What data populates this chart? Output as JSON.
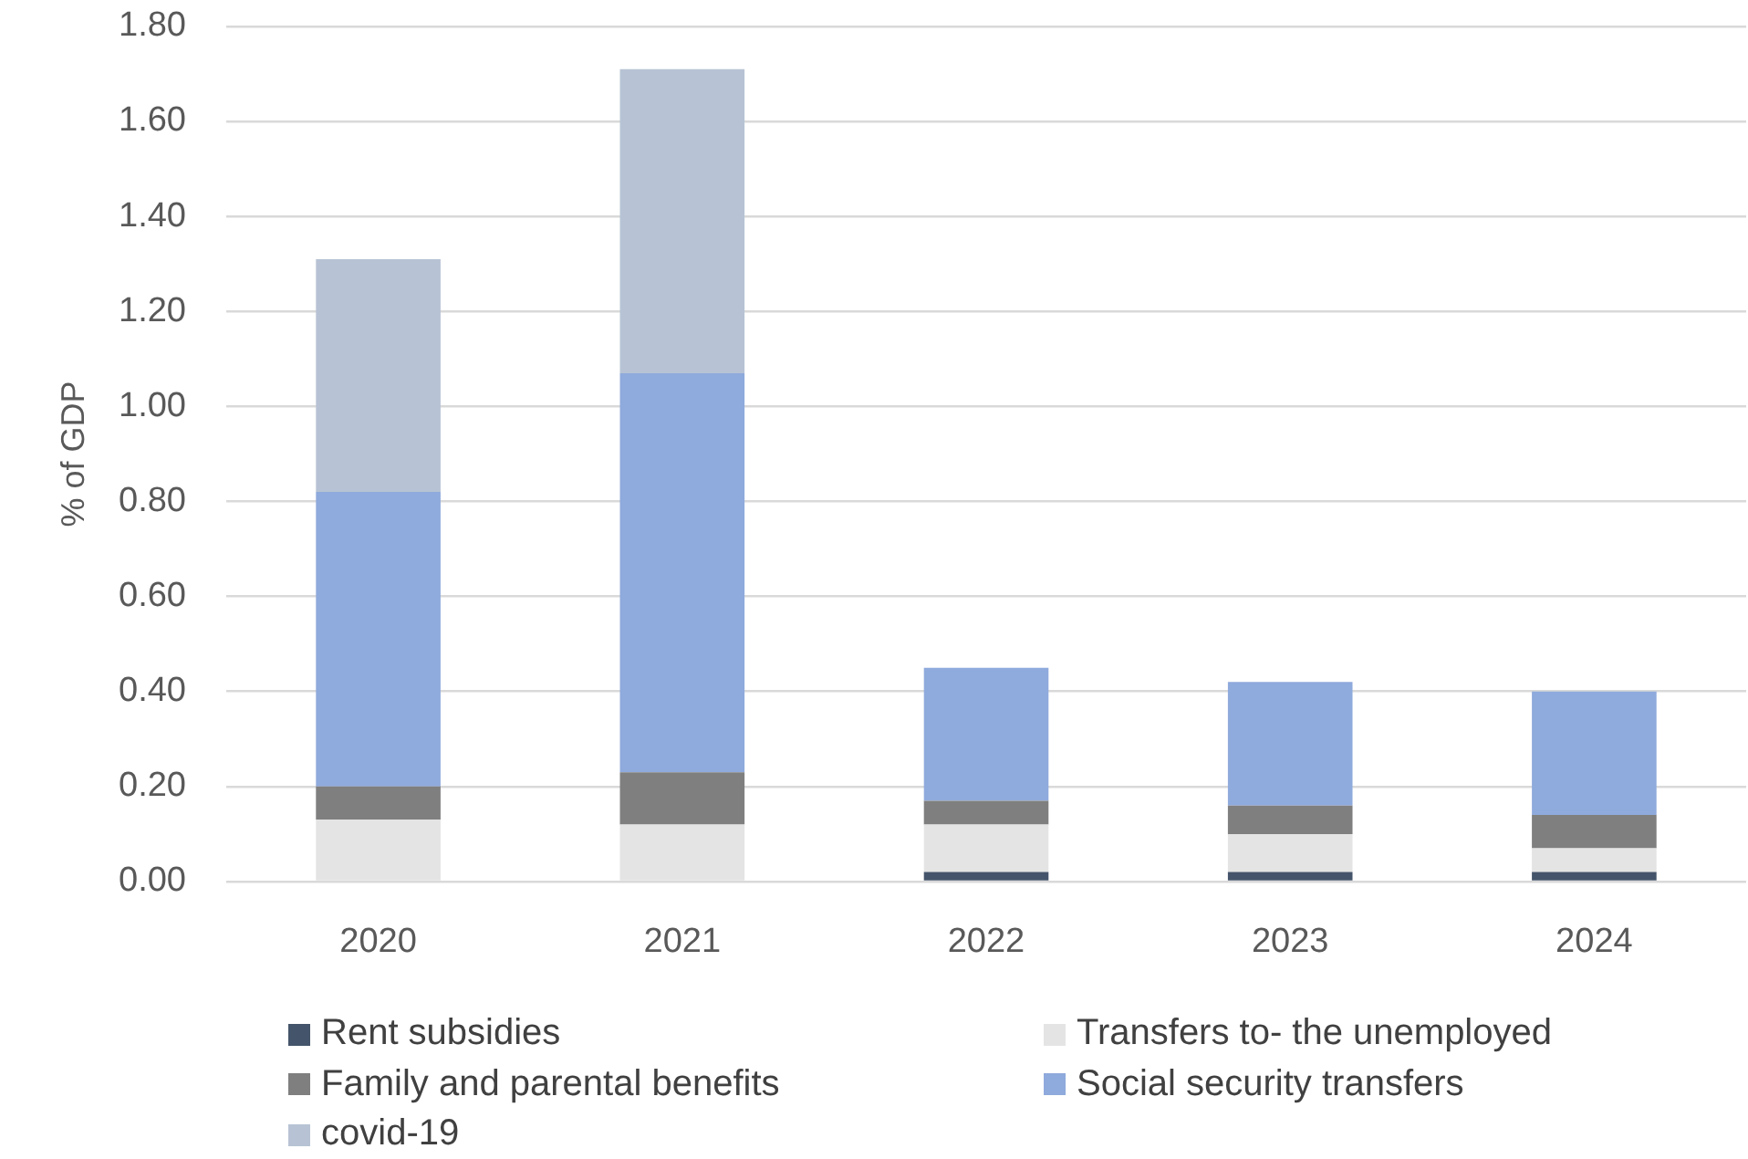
{
  "chart_data": {
    "type": "bar",
    "ylabel": "% of GDP",
    "categories": [
      "2020",
      "2021",
      "2022",
      "2023",
      "2024"
    ],
    "stacked": true,
    "series": [
      {
        "name": "Rent subsidies",
        "color": "#44546a",
        "values": [
          null,
          null,
          0.02,
          0.02,
          0.02
        ]
      },
      {
        "name": "Transfers to- the unemployed",
        "color": "#e4e4e4",
        "values": [
          0.13,
          0.12,
          0.1,
          0.08,
          0.05
        ]
      },
      {
        "name": "Family and parental benefits",
        "color": "#7f7f7f",
        "values": [
          0.07,
          0.11,
          0.05,
          0.06,
          0.07
        ]
      },
      {
        "name": "Social security transfers",
        "color": "#8faadc",
        "values": [
          0.62,
          0.84,
          0.28,
          0.26,
          0.26
        ]
      },
      {
        "name": "covid-19",
        "color": "#b7c3d4",
        "values": [
          0.49,
          0.64,
          null,
          null,
          null
        ]
      }
    ],
    "ylim": [
      0,
      1.8
    ],
    "yticks": [
      {
        "value": 0,
        "label": "0.00"
      },
      {
        "value": 0.2,
        "label": "0.20"
      },
      {
        "value": 0.4,
        "label": "0.40"
      },
      {
        "value": 0.6,
        "label": "0.60"
      },
      {
        "value": 0.8,
        "label": "0.80"
      },
      {
        "value": 1,
        "label": "1.00"
      },
      {
        "value": 1.2,
        "label": "1.20"
      },
      {
        "value": 1.4,
        "label": "1.40"
      },
      {
        "value": 1.6,
        "label": "1.60"
      },
      {
        "value": 1.8,
        "label": "1.80"
      }
    ],
    "grid": "y",
    "legend": "bottom"
  }
}
